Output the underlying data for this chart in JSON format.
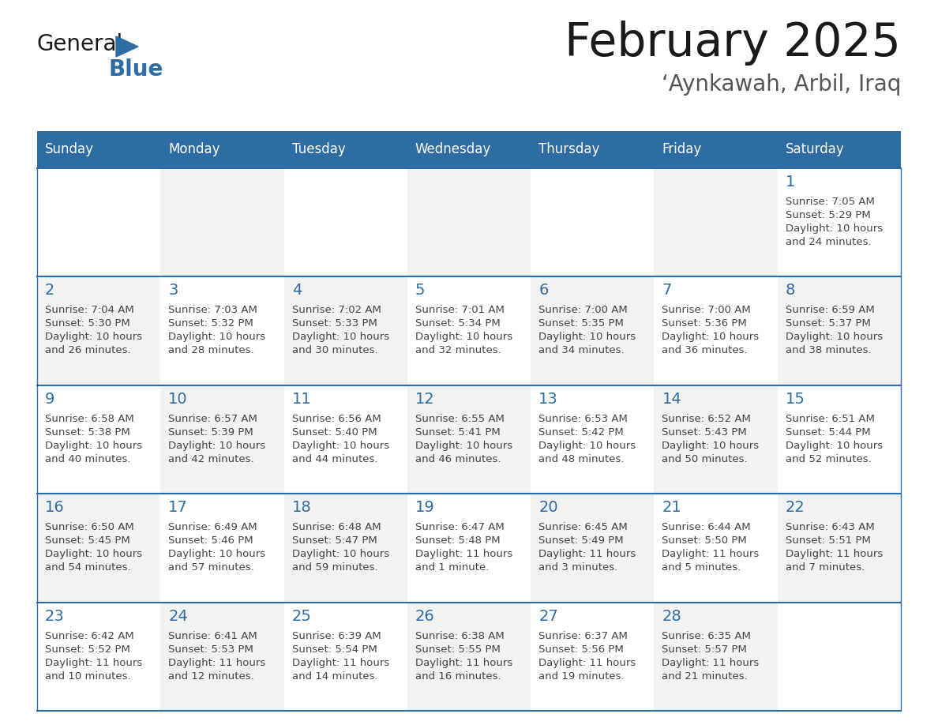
{
  "title": "February 2025",
  "subtitle": "‘Aynkawah, Arbil, Iraq",
  "header_bg": "#2E6DA4",
  "header_text_color": "#FFFFFF",
  "cell_bg_odd": "#F2F2F2",
  "cell_bg_even": "#FFFFFF",
  "day_headers": [
    "Sunday",
    "Monday",
    "Tuesday",
    "Wednesday",
    "Thursday",
    "Friday",
    "Saturday"
  ],
  "title_color": "#1a1a1a",
  "subtitle_color": "#555555",
  "date_color": "#2E6DA4",
  "text_color": "#444444",
  "line_color": "#2E6DA4",
  "logo_general_color": "#1a1a1a",
  "logo_blue_color": "#2E6DA4",
  "logo_triangle_color": "#2E6DA4",
  "calendar": [
    [
      null,
      null,
      null,
      null,
      null,
      null,
      1
    ],
    [
      2,
      3,
      4,
      5,
      6,
      7,
      8
    ],
    [
      9,
      10,
      11,
      12,
      13,
      14,
      15
    ],
    [
      16,
      17,
      18,
      19,
      20,
      21,
      22
    ],
    [
      23,
      24,
      25,
      26,
      27,
      28,
      null
    ]
  ],
  "cell_data": {
    "1": {
      "sunrise": "7:05 AM",
      "sunset": "5:29 PM",
      "daylight": "10 hours and 24 minutes."
    },
    "2": {
      "sunrise": "7:04 AM",
      "sunset": "5:30 PM",
      "daylight": "10 hours and 26 minutes."
    },
    "3": {
      "sunrise": "7:03 AM",
      "sunset": "5:32 PM",
      "daylight": "10 hours and 28 minutes."
    },
    "4": {
      "sunrise": "7:02 AM",
      "sunset": "5:33 PM",
      "daylight": "10 hours and 30 minutes."
    },
    "5": {
      "sunrise": "7:01 AM",
      "sunset": "5:34 PM",
      "daylight": "10 hours and 32 minutes."
    },
    "6": {
      "sunrise": "7:00 AM",
      "sunset": "5:35 PM",
      "daylight": "10 hours and 34 minutes."
    },
    "7": {
      "sunrise": "7:00 AM",
      "sunset": "5:36 PM",
      "daylight": "10 hours and 36 minutes."
    },
    "8": {
      "sunrise": "6:59 AM",
      "sunset": "5:37 PM",
      "daylight": "10 hours and 38 minutes."
    },
    "9": {
      "sunrise": "6:58 AM",
      "sunset": "5:38 PM",
      "daylight": "10 hours and 40 minutes."
    },
    "10": {
      "sunrise": "6:57 AM",
      "sunset": "5:39 PM",
      "daylight": "10 hours and 42 minutes."
    },
    "11": {
      "sunrise": "6:56 AM",
      "sunset": "5:40 PM",
      "daylight": "10 hours and 44 minutes."
    },
    "12": {
      "sunrise": "6:55 AM",
      "sunset": "5:41 PM",
      "daylight": "10 hours and 46 minutes."
    },
    "13": {
      "sunrise": "6:53 AM",
      "sunset": "5:42 PM",
      "daylight": "10 hours and 48 minutes."
    },
    "14": {
      "sunrise": "6:52 AM",
      "sunset": "5:43 PM",
      "daylight": "10 hours and 50 minutes."
    },
    "15": {
      "sunrise": "6:51 AM",
      "sunset": "5:44 PM",
      "daylight": "10 hours and 52 minutes."
    },
    "16": {
      "sunrise": "6:50 AM",
      "sunset": "5:45 PM",
      "daylight": "10 hours and 54 minutes."
    },
    "17": {
      "sunrise": "6:49 AM",
      "sunset": "5:46 PM",
      "daylight": "10 hours and 57 minutes."
    },
    "18": {
      "sunrise": "6:48 AM",
      "sunset": "5:47 PM",
      "daylight": "10 hours and 59 minutes."
    },
    "19": {
      "sunrise": "6:47 AM",
      "sunset": "5:48 PM",
      "daylight": "11 hours and 1 minute."
    },
    "20": {
      "sunrise": "6:45 AM",
      "sunset": "5:49 PM",
      "daylight": "11 hours and 3 minutes."
    },
    "21": {
      "sunrise": "6:44 AM",
      "sunset": "5:50 PM",
      "daylight": "11 hours and 5 minutes."
    },
    "22": {
      "sunrise": "6:43 AM",
      "sunset": "5:51 PM",
      "daylight": "11 hours and 7 minutes."
    },
    "23": {
      "sunrise": "6:42 AM",
      "sunset": "5:52 PM",
      "daylight": "11 hours and 10 minutes."
    },
    "24": {
      "sunrise": "6:41 AM",
      "sunset": "5:53 PM",
      "daylight": "11 hours and 12 minutes."
    },
    "25": {
      "sunrise": "6:39 AM",
      "sunset": "5:54 PM",
      "daylight": "11 hours and 14 minutes."
    },
    "26": {
      "sunrise": "6:38 AM",
      "sunset": "5:55 PM",
      "daylight": "11 hours and 16 minutes."
    },
    "27": {
      "sunrise": "6:37 AM",
      "sunset": "5:56 PM",
      "daylight": "11 hours and 19 minutes."
    },
    "28": {
      "sunrise": "6:35 AM",
      "sunset": "5:57 PM",
      "daylight": "11 hours and 21 minutes."
    }
  }
}
